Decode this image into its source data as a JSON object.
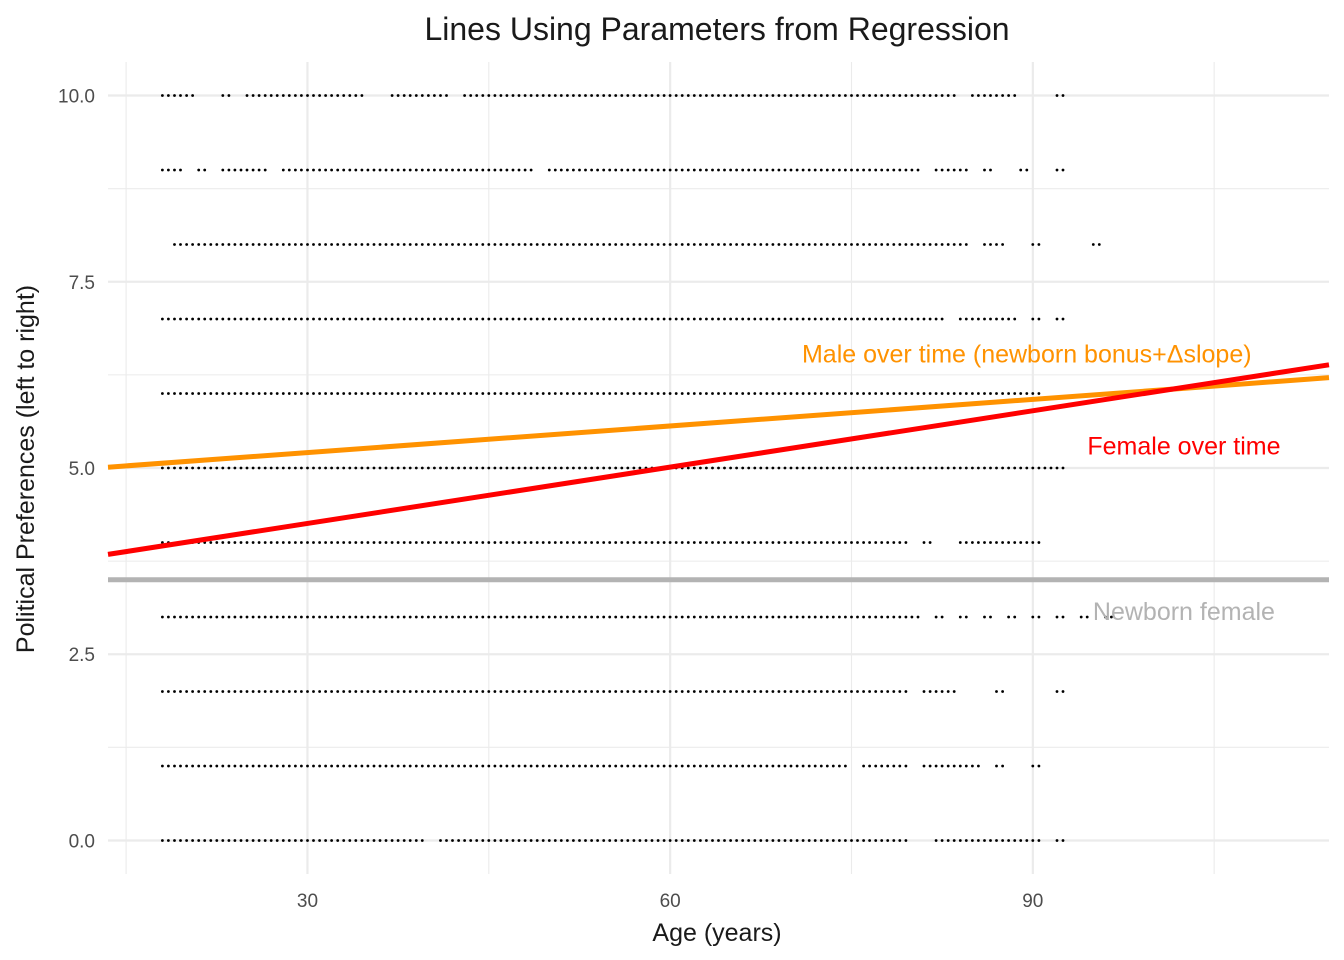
{
  "chart_data": {
    "type": "scatter",
    "title": "Lines Using Parameters from Regression",
    "xlabel": "Age (years)",
    "ylabel": "Political Preferences (left to right)",
    "xlim": [
      13.5,
      114.5
    ],
    "ylim": [
      -0.45,
      10.45
    ],
    "x_ticks": [
      30,
      60,
      90
    ],
    "x_minor_ticks": [
      15,
      45,
      75,
      105
    ],
    "y_ticks": [
      0.0,
      2.5,
      5.0,
      7.5,
      10.0
    ],
    "y_tick_labels": [
      "0.0",
      "2.5",
      "5.0",
      "7.5",
      "10.0"
    ],
    "y_minor_ticks": [
      1.25,
      3.75,
      6.25,
      8.75
    ],
    "grid": true,
    "point_color": "#000000",
    "points_by_y": [
      {
        "y": 10,
        "segments": [
          [
            18,
            20
          ],
          [
            23,
            23
          ],
          [
            25,
            34
          ],
          [
            37,
            41
          ],
          [
            43,
            83
          ],
          [
            85,
            88
          ],
          [
            92,
            92
          ]
        ]
      },
      {
        "y": 9,
        "segments": [
          [
            18,
            19
          ],
          [
            21,
            21
          ],
          [
            23,
            26
          ],
          [
            28,
            48
          ],
          [
            50,
            80
          ],
          [
            82,
            84
          ],
          [
            86,
            86
          ],
          [
            89,
            89
          ],
          [
            92,
            92
          ]
        ]
      },
      {
        "y": 8,
        "segments": [
          [
            19,
            84
          ],
          [
            86,
            87
          ],
          [
            90,
            90
          ],
          [
            95,
            95
          ]
        ]
      },
      {
        "y": 7,
        "segments": [
          [
            18,
            82
          ],
          [
            84,
            88
          ],
          [
            90,
            90
          ],
          [
            92,
            92
          ]
        ]
      },
      {
        "y": 6,
        "segments": [
          [
            18,
            90
          ]
        ]
      },
      {
        "y": 5,
        "segments": [
          [
            18,
            92
          ]
        ]
      },
      {
        "y": 4,
        "segments": [
          [
            18,
            18
          ],
          [
            20,
            79
          ],
          [
            81,
            81
          ],
          [
            84,
            90
          ]
        ]
      },
      {
        "y": 3,
        "segments": [
          [
            18,
            80
          ],
          [
            82,
            82
          ],
          [
            84,
            84
          ],
          [
            86,
            86
          ],
          [
            88,
            88
          ],
          [
            90,
            90
          ],
          [
            92,
            92
          ],
          [
            94,
            94
          ],
          [
            96,
            96
          ]
        ]
      },
      {
        "y": 2,
        "segments": [
          [
            18,
            79
          ],
          [
            81,
            83
          ],
          [
            87,
            87
          ],
          [
            92,
            92
          ]
        ]
      },
      {
        "y": 1,
        "segments": [
          [
            18,
            74
          ],
          [
            76,
            79
          ],
          [
            81,
            85
          ],
          [
            87,
            87
          ],
          [
            90,
            90
          ]
        ]
      },
      {
        "y": 0,
        "segments": [
          [
            18,
            39
          ],
          [
            41,
            79
          ],
          [
            82,
            90
          ],
          [
            92,
            92
          ]
        ]
      }
    ],
    "lines": [
      {
        "label": "Newborn female",
        "intercept": 3.5,
        "slope": 0.0,
        "color": "#B3B3B3",
        "label_x": 102.5,
        "label_y": 3.08
      },
      {
        "label": "Male over time (newborn bonus+Δslope)",
        "intercept": 4.85,
        "slope": 0.0119,
        "color": "#FF9200",
        "label_x": 89.5,
        "label_y": 6.54
      },
      {
        "label": "Female over time",
        "intercept": 3.5,
        "slope": 0.0252,
        "color": "#FF0000",
        "label_x": 102.5,
        "label_y": 5.3
      }
    ]
  }
}
